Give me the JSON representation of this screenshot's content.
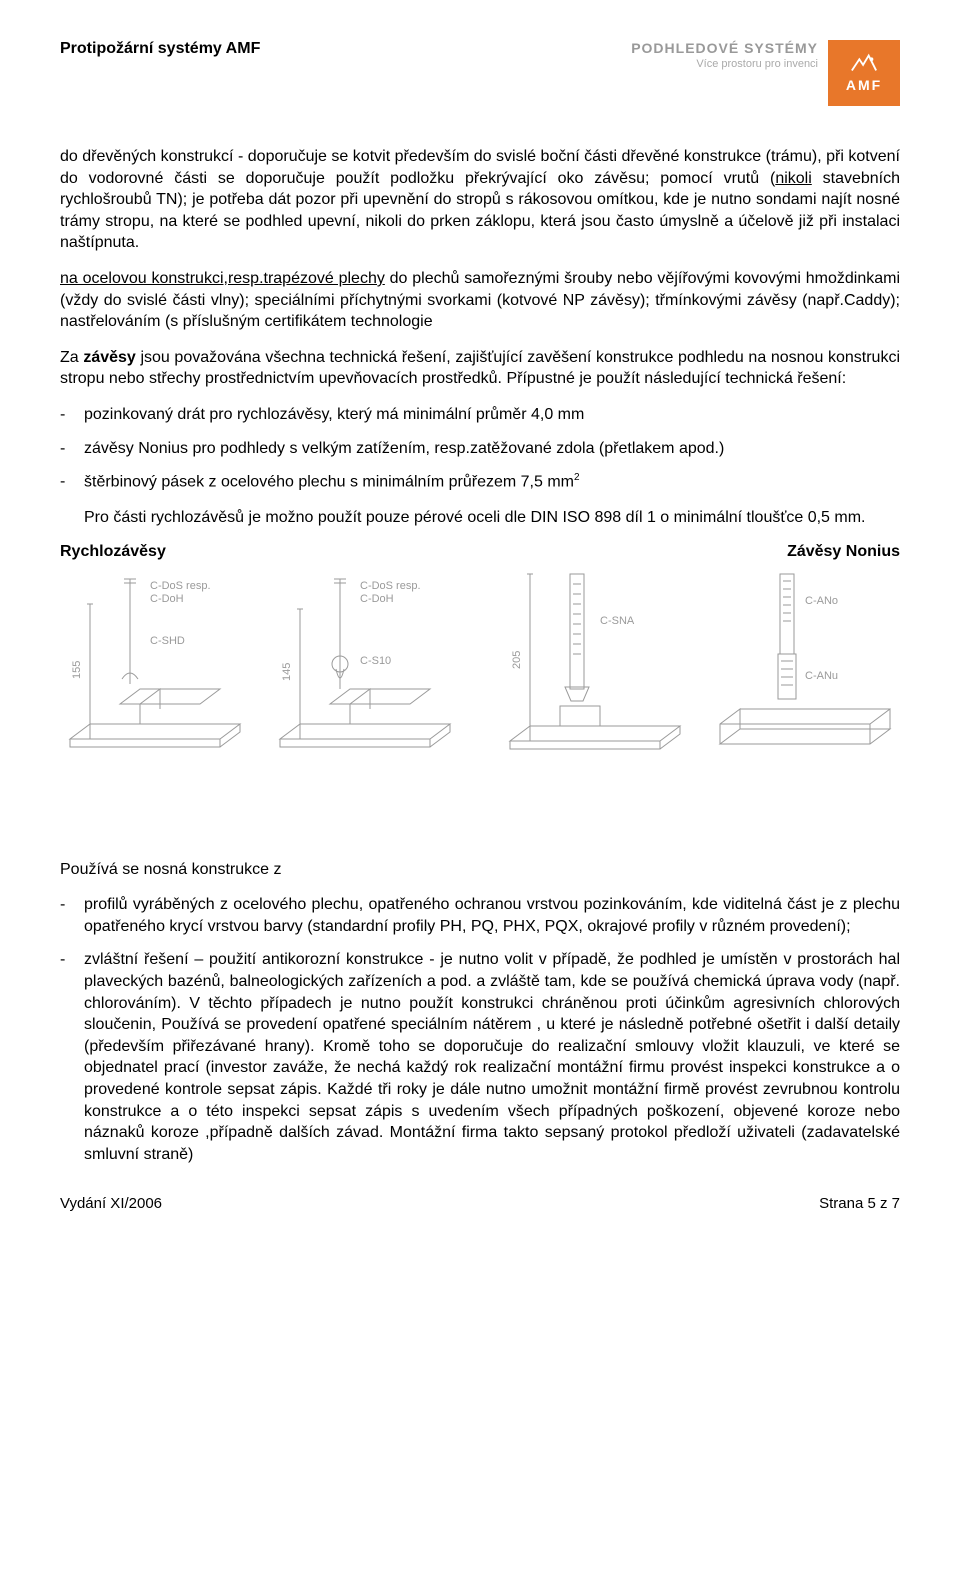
{
  "header": {
    "title": "Protipožární systémy AMF",
    "brand_main": "PODHLEDOVÉ SYSTÉMY",
    "brand_sub": "Více prostoru pro invenci",
    "logo_label": "AMF",
    "logo_bg": "#e8772a",
    "logo_fg": "#ffffff"
  },
  "para1": "do dřevěných konstrukcí - doporučuje se kotvit především do svislé boční části dřevěné konstrukce (trámu), při kotvení do vodorovné části se doporučuje použít podložku překrývající oko závěsu; pomocí vrutů (nikoli stavebních rychlošroubů TN); je potřeba dát pozor při upevnění do stropů s rákosovou omítkou, kde je nutno sondami najít nosné trámy stropu, na které se podhled upevní, nikoli do prken záklopu, která jsou často úmyslně a účelově již při instalaci naštípnuta.",
  "para1_runin_underline": "nikoli",
  "para2_runin": "na ocelovou konstrukci,resp.trapézové plechy",
  "para2_rest": " do plechů samořeznými šrouby nebo vějířovými kovovými hmoždinkami (vždy do svislé části vlny); speciálními příchytnými svorkami (kotvové NP závěsy); třmínkovými závěsy (např.Caddy); nastřelováním (s příslušným certifikátem technologie",
  "para3_pre": "Za ",
  "para3_bold": "závěsy",
  "para3_post": " jsou považována všechna technická řešení, zajišťující zavěšení konstrukce podhledu na nosnou konstrukci stropu nebo střechy prostřednictvím upevňovacích prostředků. Přípustné je použít následující technická řešení:",
  "list1": [
    "pozinkovaný drát pro rychlozávěsy, který má minimální průměr 4,0 mm",
    "závěsy Nonius pro podhledy s velkým zatížením, resp.zatěžované zdola (přetlakem apod.)",
    "štěrbinový pásek z ocelového plechu s minimálním průřezem 7,5 mm"
  ],
  "list1_item3_sup": "2",
  "indent_para": "Pro části rychlozávěsů je možno použít pouze pérové oceli dle DIN ISO 898 díl 1 o minimální tloušťce 0,5 mm.",
  "diagram_headings": {
    "left": "Rychlozávěsy",
    "right": "Závěsy Nonius"
  },
  "diagram": {
    "labels": [
      "C-DoS resp.",
      "C-DoH",
      "C-SHD",
      "C-DoS resp.",
      "C-DoH",
      "C-S10",
      "C-SNA",
      "C-ANo",
      "C-ANu"
    ],
    "dims": [
      "155",
      "145",
      "205"
    ],
    "stroke": "#9a9a9a",
    "stroke_width": 1,
    "text_color": "#9a9a9a",
    "font_size": 11
  },
  "para4": "Používá se nosná konstrukce z",
  "list2": [
    "profilů vyráběných z ocelového plechu, opatřeného ochranou vrstvou pozinkováním, kde viditelná část je z plechu opatřeného krycí vrstvou barvy (standardní profily PH, PQ, PHX, PQX, okrajové profily v různém provedení);",
    "zvláštní řešení – použití antikorozní konstrukce - je nutno volit v případě, že podhled je umístěn v prostorách hal plaveckých bazénů, balneologických zařízeních a pod. a zvláště tam, kde se používá chemická úprava vody (např. chlorováním). V těchto případech je nutno použít konstrukci chráněnou proti účinkům agresivních chlorových sloučenin, Používá se provedení opatřené speciálním nátěrem , u které je následně potřebné ošetřit i další detaily (především přiřezávané hrany). Kromě toho se doporučuje do realizační smlouvy vložit klauzuli, ve které se objednatel prací (investor zaváže, že nechá každý rok realizační montážní firmu provést inspekci konstrukce a o provedené kontrole sepsat zápis. Každé tři roky je dále nutno umožnit montážní firmě provést zevrubnou kontrolu konstrukce a o této inspekci sepsat zápis s uvedením všech případných poškození, objevené koroze nebo náznaků koroze ,případně dalších závad. Montážní firma takto sepsaný protokol předloží uživateli (zadavatelské smluvní straně)"
  ],
  "footer": {
    "left": "Vydání XI/2006",
    "right": "Strana 5 z 7"
  }
}
